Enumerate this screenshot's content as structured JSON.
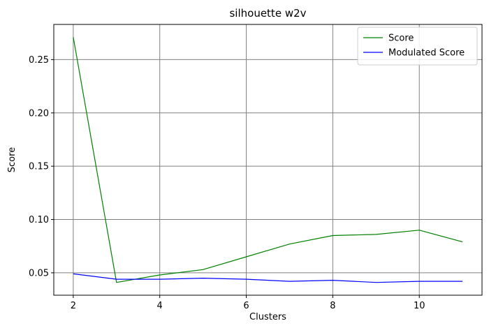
{
  "chart_data": {
    "type": "line",
    "title": "silhouette w2v",
    "xlabel": "Clusters",
    "ylabel": "Score",
    "x": [
      2,
      3,
      4,
      5,
      6,
      7,
      8,
      9,
      10,
      11
    ],
    "xlim": [
      1.55,
      11.45
    ],
    "ylim": [
      0.029,
      0.283
    ],
    "xticks": [
      2,
      4,
      6,
      8,
      10
    ],
    "yticks": [
      0.05,
      0.1,
      0.15,
      0.2,
      0.25
    ],
    "ytick_labels": [
      "0.05",
      "0.10",
      "0.15",
      "0.20",
      "0.25"
    ],
    "grid": true,
    "grid_color": "#808080",
    "legend_position": "upper right",
    "series": [
      {
        "name": "Score",
        "color": "#008000",
        "values": [
          0.271,
          0.041,
          0.048,
          0.053,
          0.065,
          0.077,
          0.085,
          0.086,
          0.09,
          0.079
        ]
      },
      {
        "name": "Modulated Score",
        "color": "#0000ff",
        "values": [
          0.049,
          0.044,
          0.044,
          0.045,
          0.044,
          0.042,
          0.043,
          0.041,
          0.042,
          0.042
        ]
      }
    ]
  }
}
